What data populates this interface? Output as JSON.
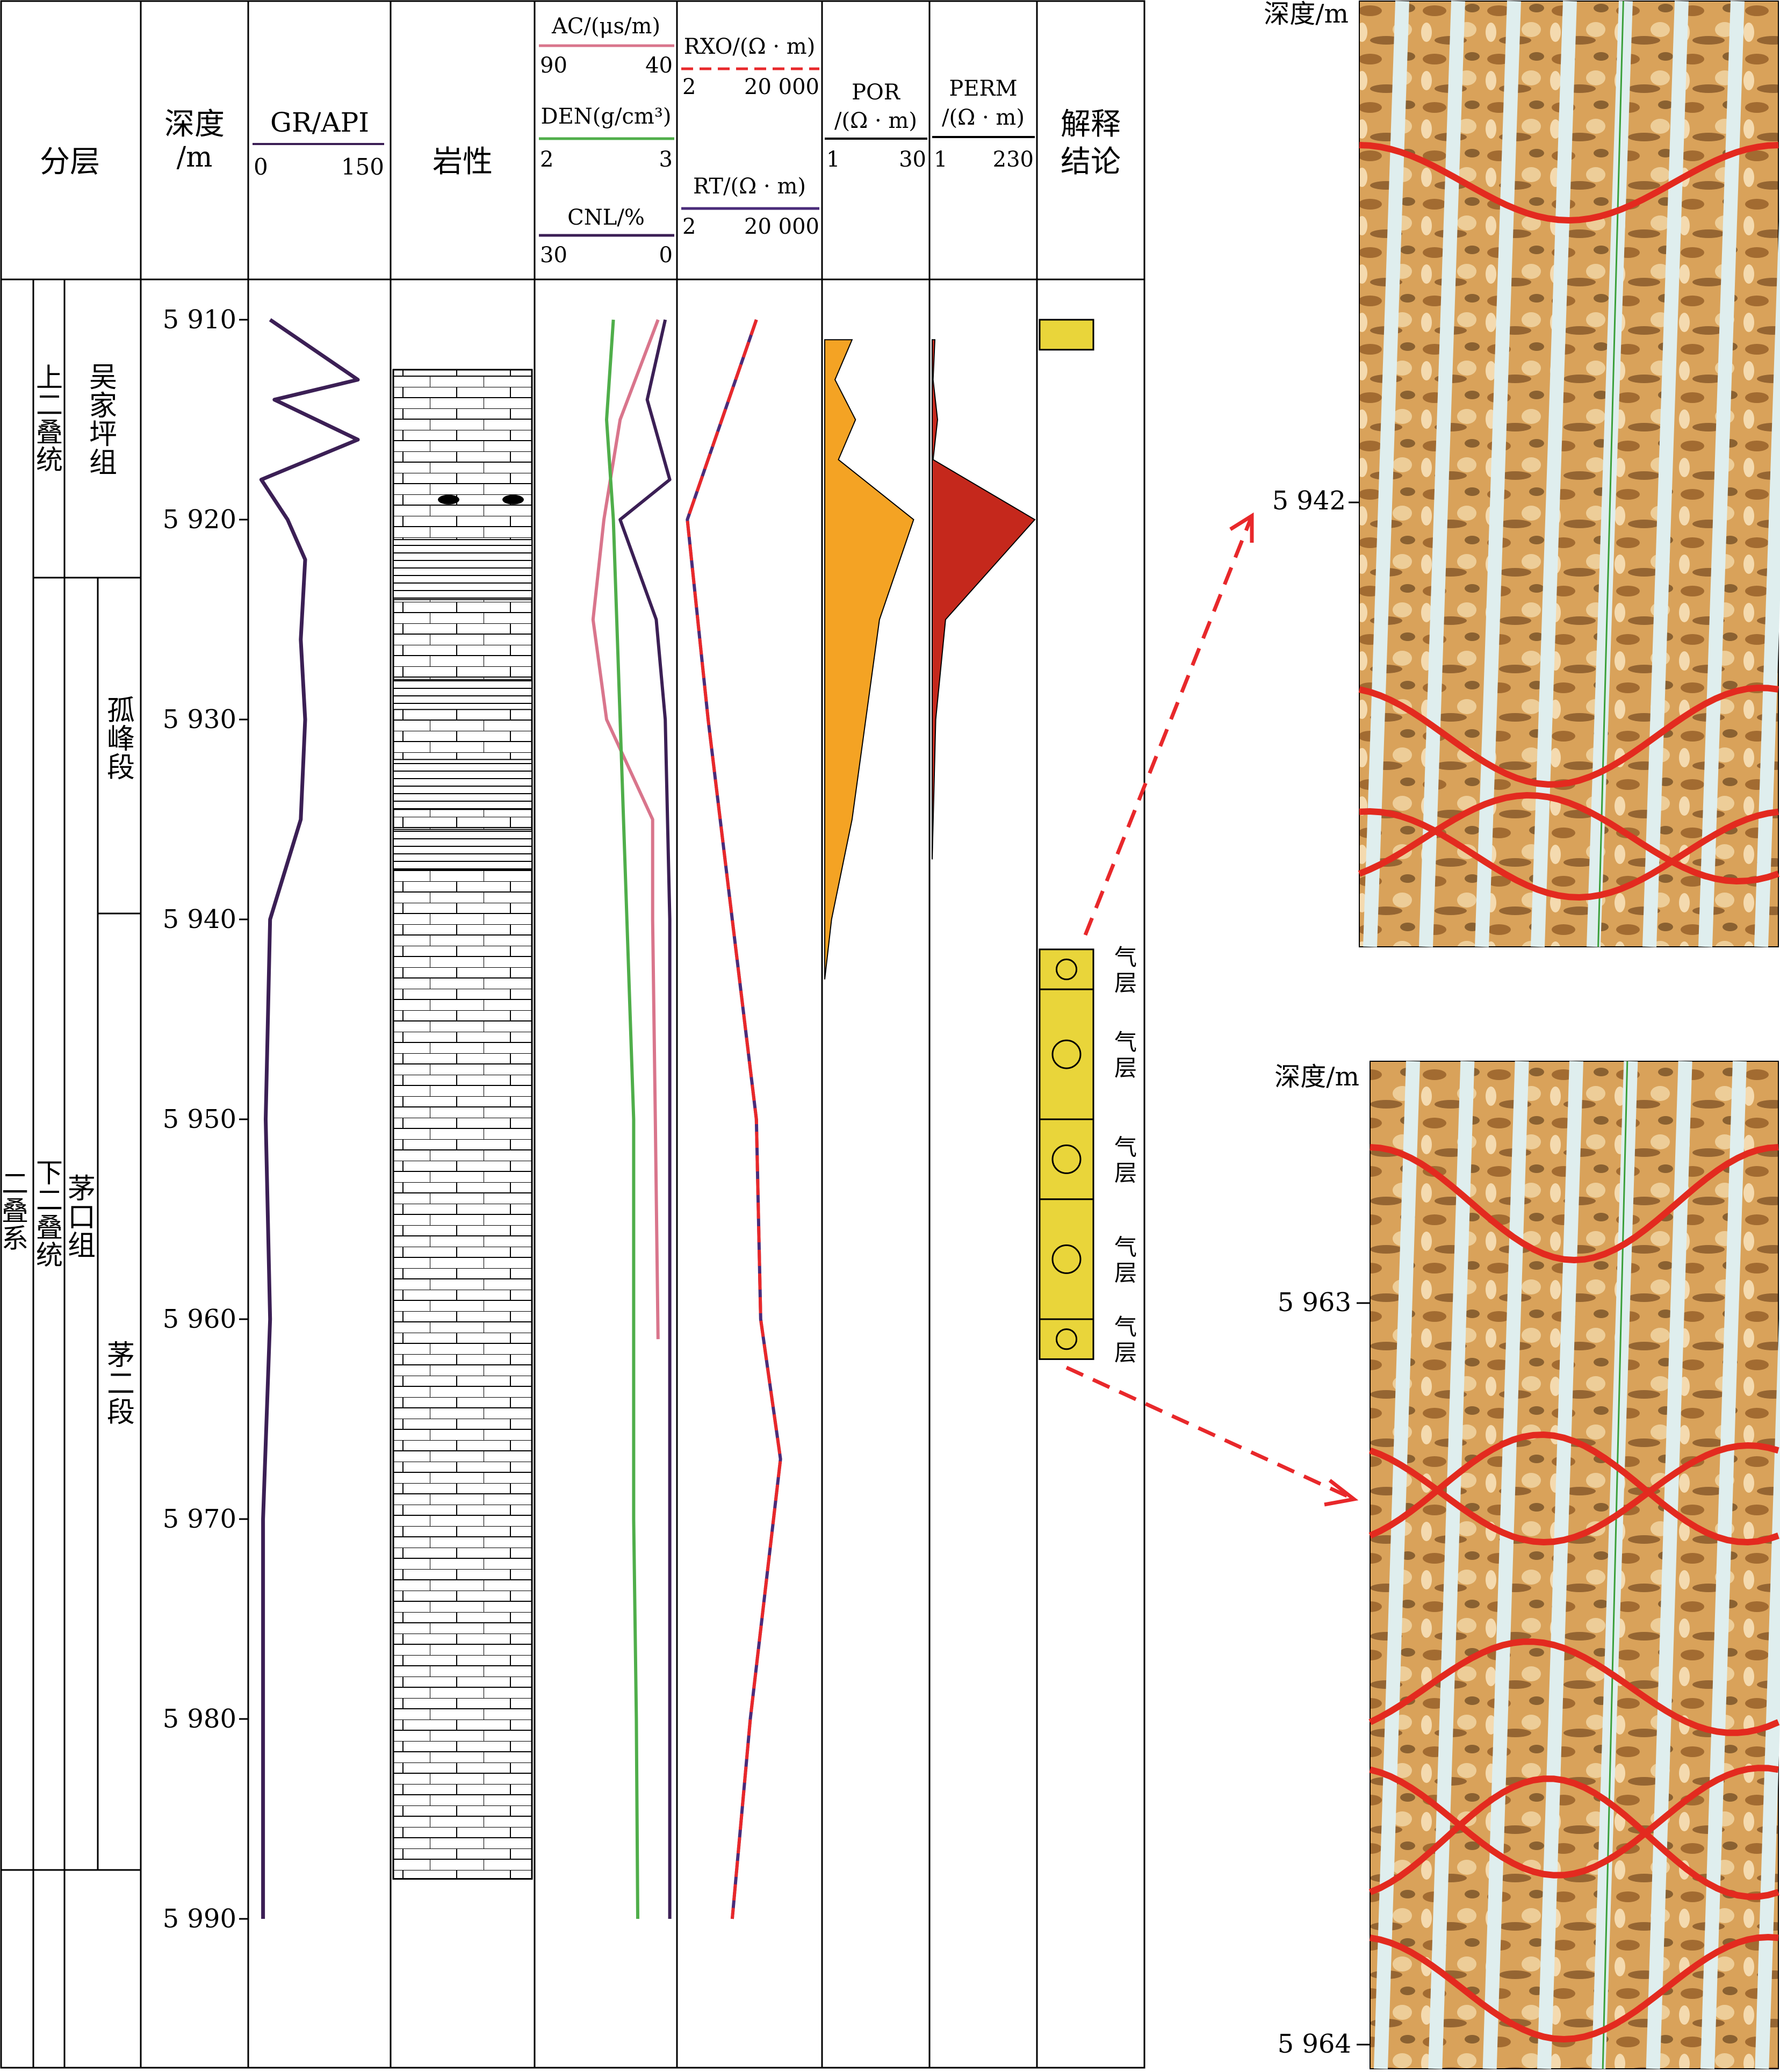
{
  "headers": {
    "strat": "分层",
    "depth_line1": "深度",
    "depth_line2": "/m",
    "gr_label": "GR/API",
    "gr_min": "0",
    "gr_max": "150",
    "lith": "岩性",
    "ac_label": "AC/(μs/m)",
    "ac_left": "90",
    "ac_right": "40",
    "den_label": "DEN(g/cm³)",
    "den_left": "2",
    "den_right": "3",
    "cnl_label": "CNL/%",
    "cnl_left": "30",
    "cnl_right": "0",
    "rxo_label": "RXO/(Ω · m)",
    "rxo_left": "2",
    "rxo_right": "20 000",
    "rt_label": "RT/(Ω · m)",
    "rt_left": "2",
    "rt_right": "20 000",
    "por_line1": "POR",
    "por_line2": "/(Ω · m)",
    "por_left": "1",
    "por_right": "30",
    "perm_line1": "PERM",
    "perm_line2": "/(Ω · m)",
    "perm_left": "1",
    "perm_right": "230",
    "interp_line1": "解释",
    "interp_line2": "结论"
  },
  "strat": {
    "system": "二叠系",
    "upper_series": "上二叠统",
    "lower_series": "下二叠统",
    "wujiaping": "吴家坪组",
    "maokou": "茅口组",
    "gufeng": "孤峰段",
    "mao2": "茅二段"
  },
  "depth_ticks": [
    "5 910",
    "5 920",
    "5 930",
    "5 940",
    "5 950",
    "5 960",
    "5 970",
    "5 980",
    "5 990"
  ],
  "gas_layer_label": "气层",
  "image_logs": {
    "top": {
      "depth_label": "深度/m",
      "tick": "5 942"
    },
    "bottom": {
      "depth_label": "深度/m",
      "tick_top": "5 963",
      "tick_bottom": "5 964"
    }
  },
  "colors": {
    "gr_curve": "#3b1f55",
    "ac_curve": "#d9758c",
    "den_curve": "#4fae4a",
    "cnl_curve": "#3b1f55",
    "rxo_curve": "#e8282b",
    "rt_curve": "#4a2c7a",
    "por_fill": "#f4a324",
    "perm_fill": "#c5281c",
    "gas_layer": "#e9d53a",
    "arrow": "#e8282b",
    "sinusoid": "#e32a1f"
  },
  "chart_data": {
    "type": "well_log",
    "depth_range_m": [
      5908,
      5998
    ],
    "tracks": [
      {
        "name": "GR",
        "unit": "API",
        "range": [
          0,
          150
        ],
        "depth": [
          5910,
          5913,
          5914,
          5916,
          5918,
          5920,
          5922,
          5926,
          5930,
          5935,
          5940,
          5950,
          5960,
          5970,
          5980,
          5990
        ],
        "values": [
          20,
          120,
          25,
          120,
          10,
          40,
          60,
          55,
          60,
          55,
          20,
          15,
          20,
          12,
          12,
          12
        ]
      },
      {
        "name": "AC",
        "unit": "μs/m",
        "range": [
          90,
          40
        ],
        "depth": [
          5910,
          5915,
          5920,
          5925,
          5930,
          5935,
          5940,
          5950,
          5961
        ],
        "values": [
          46,
          60,
          66,
          70,
          65,
          48,
          48,
          47,
          46
        ]
      },
      {
        "name": "DEN",
        "unit": "g/cm³",
        "range": [
          2,
          3
        ],
        "depth": [
          5910,
          5915,
          5920,
          5930,
          5940,
          5950,
          5960,
          5970,
          5980,
          5990
        ],
        "values": [
          2.55,
          2.5,
          2.55,
          2.6,
          2.65,
          2.7,
          2.7,
          2.7,
          2.72,
          2.73
        ]
      },
      {
        "name": "CNL",
        "unit": "%",
        "range": [
          30,
          0
        ],
        "depth": [
          5910,
          5914,
          5918,
          5920,
          5925,
          5930,
          5940,
          5960,
          5990
        ],
        "values": [
          2,
          6,
          1,
          12,
          4,
          2,
          1,
          1,
          1
        ]
      },
      {
        "name": "RXO",
        "unit": "Ω·m",
        "range": [
          2,
          20000
        ],
        "scale": "log",
        "depth": [
          5910,
          5920,
          5930,
          5940,
          5950,
          5960,
          5967,
          5980,
          5990
        ],
        "values": [
          300,
          3,
          12,
          60,
          300,
          400,
          1500,
          200,
          60
        ]
      },
      {
        "name": "RT",
        "unit": "Ω·m",
        "range": [
          2,
          20000
        ],
        "scale": "log",
        "depth": [
          5910,
          5920,
          5930,
          5940,
          5950,
          5960,
          5967,
          5980,
          5990
        ],
        "values": [
          300,
          3,
          12,
          60,
          300,
          400,
          1500,
          200,
          60
        ]
      },
      {
        "name": "POR",
        "range": [
          1,
          30
        ],
        "depth": [
          5911,
          5913,
          5915,
          5917,
          5920,
          5925,
          5930,
          5935,
          5940,
          5943
        ],
        "values": [
          8,
          3,
          9,
          4,
          26,
          16,
          12,
          8,
          2,
          0
        ]
      },
      {
        "name": "PERM",
        "range": [
          1,
          230
        ],
        "depth": [
          5911,
          5913,
          5915,
          5917,
          5920,
          5925,
          5930,
          5937
        ],
        "values": [
          6,
          2,
          12,
          2,
          230,
          30,
          8,
          0
        ]
      }
    ],
    "gas_layers_m": [
      [
        5941.5,
        5943.5
      ],
      [
        5943.5,
        5950
      ],
      [
        5950,
        5954
      ],
      [
        5954,
        5960
      ],
      [
        5960,
        5962
      ]
    ]
  }
}
